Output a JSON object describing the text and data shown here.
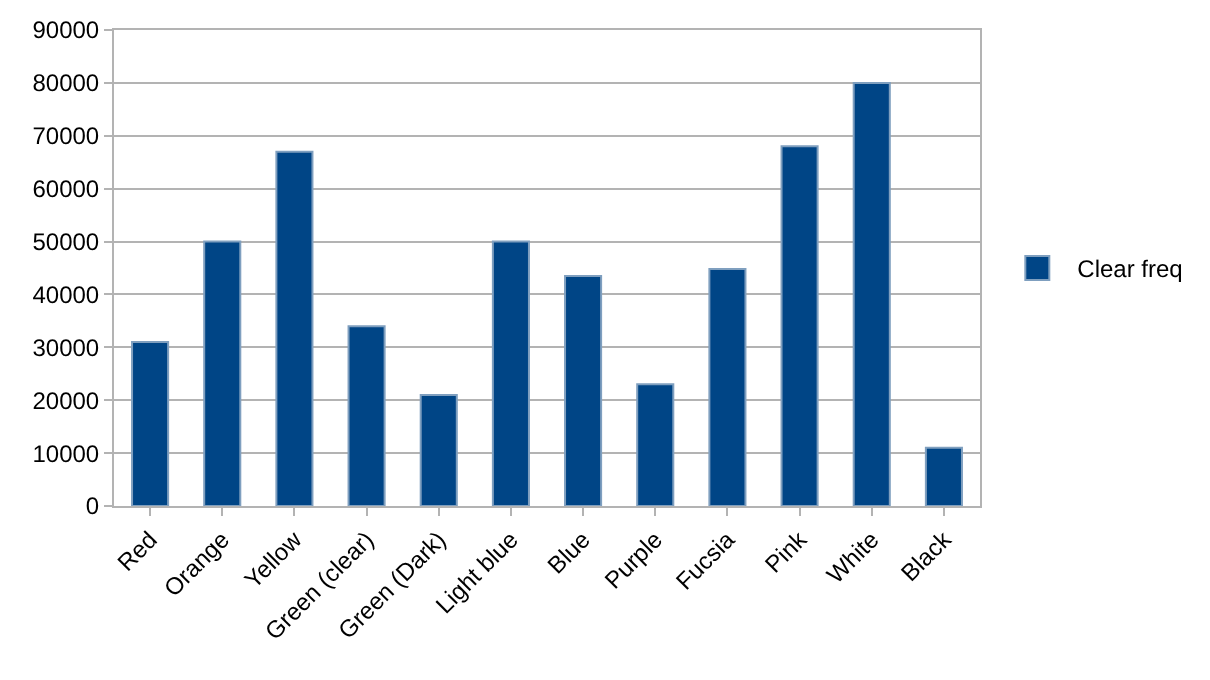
{
  "chart_data": {
    "type": "bar",
    "categories": [
      "Red",
      "Orange",
      "Yellow",
      "Green (clear)",
      "Green (Dark)",
      "Light blue",
      "Blue",
      "Purple",
      "Fucsia",
      "Pink",
      "White",
      "Black"
    ],
    "series": [
      {
        "name": "Clear freq",
        "color": "#004586",
        "values": [
          31000,
          50000,
          67000,
          34000,
          21000,
          50000,
          43500,
          23000,
          44800,
          68000,
          80000,
          11000
        ]
      }
    ],
    "ylim": [
      0,
      90000
    ],
    "yticks": [
      0,
      10000,
      20000,
      30000,
      40000,
      50000,
      60000,
      70000,
      80000,
      90000
    ],
    "grid": "y",
    "legend": "right"
  }
}
